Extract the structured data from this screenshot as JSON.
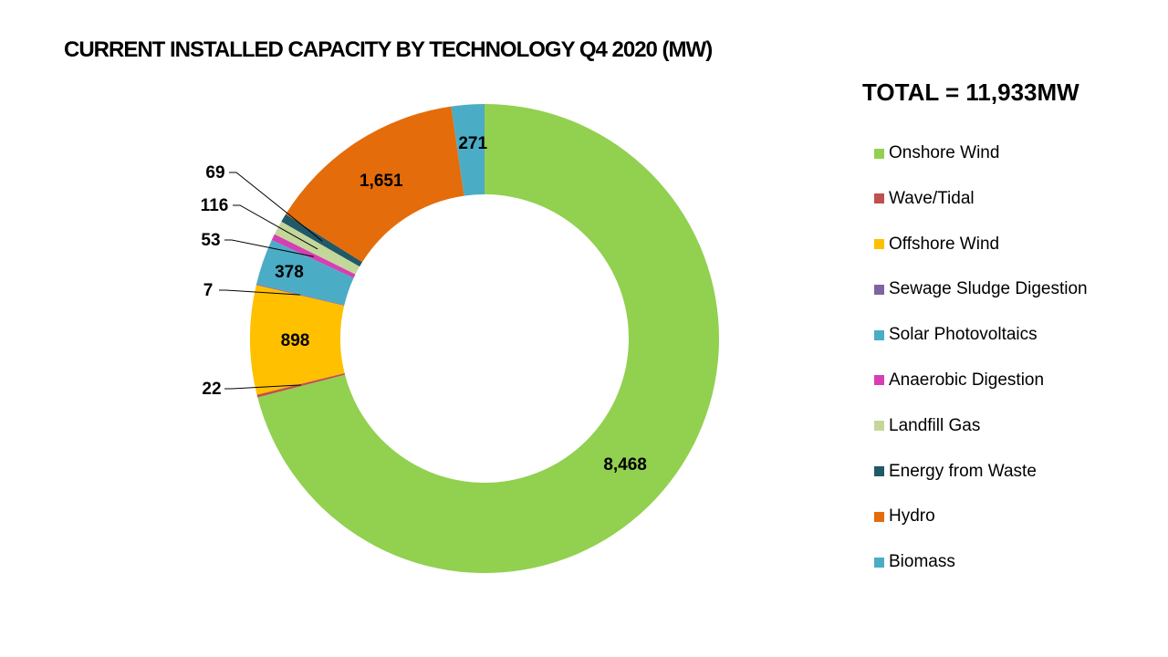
{
  "chart_data": {
    "type": "pie",
    "variant": "donut",
    "title": "CURRENT INSTALLED CAPACITY BY TECHNOLOGY Q4 2020 (MW)",
    "total_label": "TOTAL = 11,933MW",
    "total": 11933,
    "unit": "MW",
    "start": "top",
    "direction": "clockwise",
    "legend_position": "right",
    "slices": [
      {
        "name": "Onshore Wind",
        "value": 8468,
        "label": "8,468",
        "color": "#92d050",
        "label_style": "inside"
      },
      {
        "name": "Wave/Tidal",
        "value": 22,
        "label": "22",
        "color": "#c0504d",
        "label_style": "leader"
      },
      {
        "name": "Offshore Wind",
        "value": 898,
        "label": "898",
        "color": "#ffc000",
        "label_style": "inside"
      },
      {
        "name": "Sewage Sludge Digestion",
        "value": 7,
        "label": "7",
        "color": "#8064a2",
        "label_style": "leader"
      },
      {
        "name": "Solar Photovoltaics",
        "value": 378,
        "label": "378",
        "color": "#4bacc6",
        "label_style": "inside"
      },
      {
        "name": "Anaerobic Digestion",
        "value": 53,
        "label": "53",
        "color": "#d63fb4",
        "label_style": "leader"
      },
      {
        "name": "Landfill Gas",
        "value": 116,
        "label": "116",
        "color": "#c4d79b",
        "label_style": "leader"
      },
      {
        "name": "Energy from Waste",
        "value": 69,
        "label": "69",
        "color": "#215968",
        "label_style": "leader"
      },
      {
        "name": "Hydro",
        "value": 1651,
        "label": "1,651",
        "color": "#e46c0a",
        "label_style": "inside"
      },
      {
        "name": "Biomass",
        "value": 271,
        "label": "271",
        "color": "#4bacc6",
        "label_style": "inside"
      }
    ]
  }
}
